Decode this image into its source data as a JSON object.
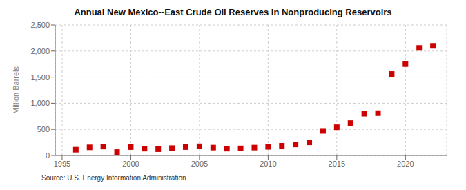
{
  "chart_data": {
    "type": "scatter",
    "title": "Annual New Mexico--East Crude Oil Reserves in Nonproducing Reservoirs",
    "ylabel": "Million Barrels",
    "annotations": [
      "Source: U.S. Energy Information Administration"
    ],
    "x": [
      1996,
      1997,
      1998,
      1999,
      2000,
      2001,
      2002,
      2003,
      2004,
      2005,
      2006,
      2007,
      2008,
      2009,
      2010,
      2011,
      2012,
      2013,
      2014,
      2015,
      2016,
      2017,
      2018,
      2019,
      2020,
      2021,
      2022
    ],
    "values": [
      110,
      155,
      170,
      65,
      160,
      130,
      120,
      140,
      160,
      175,
      150,
      130,
      135,
      150,
      165,
      185,
      210,
      250,
      470,
      540,
      620,
      800,
      810,
      1560,
      1750,
      2060,
      2100
    ],
    "color": "#cc0000",
    "marker": "square",
    "xlim": [
      1994.5,
      2023
    ],
    "xticks": [
      1995,
      2000,
      2005,
      2010,
      2015,
      2020
    ],
    "ylim": [
      0,
      2500
    ],
    "yticks": [
      0,
      500,
      {
        "value": 1000,
        "label": "1,000"
      },
      {
        "value": 1500,
        "label": "1,500"
      },
      {
        "value": 2000,
        "label": "2,000"
      },
      {
        "value": 2500,
        "label": "2,500"
      }
    ],
    "grid": true
  }
}
